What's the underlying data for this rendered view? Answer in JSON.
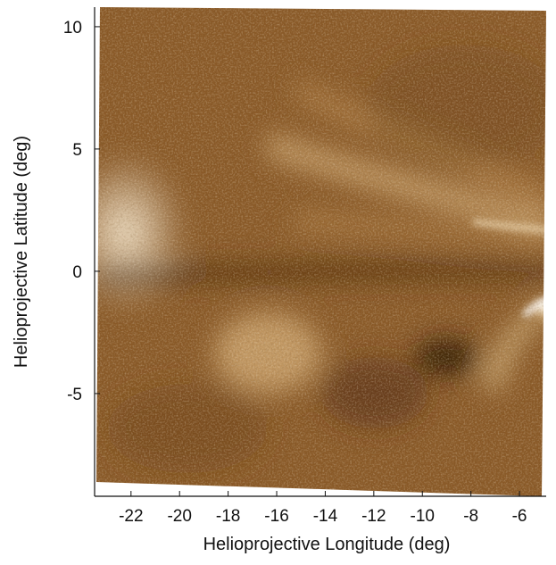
{
  "figure": {
    "x_axis_label": "Helioprojective Longitude (deg)",
    "y_axis_label": "Helioprojective Latitude (deg)",
    "x_range": [
      -23.5,
      -4.9
    ],
    "y_range": [
      -9.2,
      10.8
    ],
    "x_ticks": [
      -22,
      -20,
      -18,
      -16,
      -14,
      -12,
      -10,
      -8,
      -6
    ],
    "y_ticks": [
      10,
      5,
      0,
      -5
    ],
    "x_tick_labels": [
      "-22",
      "-20",
      "-18",
      "-16",
      "-14",
      "-12",
      "-10",
      "-8",
      "-6"
    ],
    "y_tick_labels": [
      "10",
      "5",
      "0",
      "-5"
    ],
    "colors": {
      "image_dark": "#3a1f08",
      "image_mid": "#8a5a28",
      "image_bright": "#f5e6c8",
      "axis": "#111111"
    }
  }
}
